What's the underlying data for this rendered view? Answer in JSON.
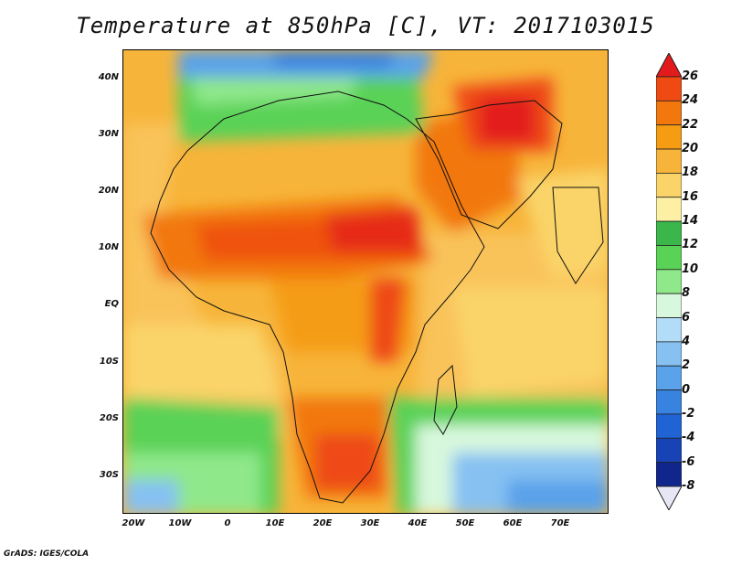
{
  "title": "Temperature at 850hPa [C], VT: 2017103015",
  "map": {
    "lat_labels": [
      "40N",
      "30N",
      "20N",
      "10N",
      "EQ",
      "10S",
      "20S",
      "30S"
    ],
    "lon_labels": [
      "20W",
      "10W",
      "0",
      "10E",
      "20E",
      "30E",
      "40E",
      "50E",
      "60E",
      "70E"
    ],
    "lon_range": [
      -22,
      80
    ],
    "lat_range": [
      -36,
      45
    ]
  },
  "colorbar": {
    "labels": [
      "26",
      "24",
      "22",
      "20",
      "18",
      "16",
      "14",
      "12",
      "10",
      "8",
      "6",
      "4",
      "2",
      "0",
      "-2",
      "-4",
      "-6",
      "-8"
    ],
    "colors": [
      "#e31a1c",
      "#ee4a12",
      "#f2780d",
      "#f59c12",
      "#f7b43a",
      "#fad469",
      "#fdf0a5",
      "#3ab64b",
      "#5ad256",
      "#8fe88a",
      "#d8f8dd",
      "#b3dcf8",
      "#86c1f2",
      "#5aa2ea",
      "#3883e0",
      "#1f63d4",
      "#1743b6",
      "#10268c",
      "#0b1460"
    ]
  },
  "footer": "GrADS: IGES/COLA"
}
